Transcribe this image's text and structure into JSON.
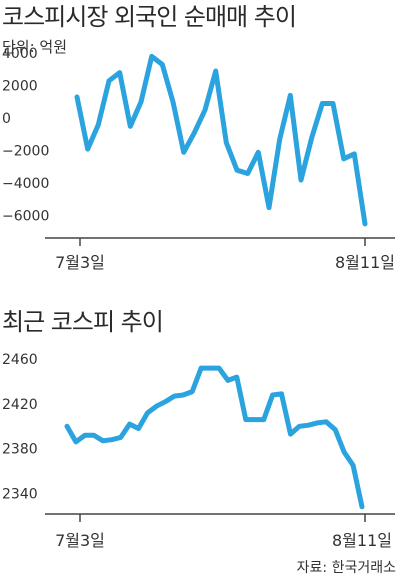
{
  "chart_data": [
    {
      "type": "line",
      "title": "코스피시장 외국인 순매매 추이",
      "subtitle": "단위: 억원",
      "yticks": [
        "4000",
        "2000",
        "0",
        "−2000",
        "−4000",
        "−6000"
      ],
      "ytick_values": [
        4000,
        2000,
        0,
        -2000,
        -4000,
        -6000
      ],
      "ylim": [
        -7000,
        4500
      ],
      "xlabels": [
        "7월3일",
        "8월11일"
      ],
      "color": "#2aa3de",
      "values": [
        1300,
        -1900,
        -400,
        2300,
        2800,
        -500,
        1000,
        3800,
        3300,
        1000,
        -2100,
        -900,
        500,
        2900,
        -1500,
        -3200,
        -3400,
        -2100,
        -5500,
        -1300,
        1400,
        -3800,
        -1200,
        900,
        900,
        -2500,
        -2200,
        -6500
      ]
    },
    {
      "type": "line",
      "title": "최근 코스피 추이",
      "yticks": [
        "2460",
        "2420",
        "2380",
        "2340"
      ],
      "ytick_values": [
        2460,
        2420,
        2380,
        2340
      ],
      "ylim": [
        2318,
        2470
      ],
      "xlabels": [
        "7월3일",
        "8월11일"
      ],
      "color": "#2aa3de",
      "values": [
        2400,
        2386,
        2392,
        2392,
        2387,
        2388,
        2390,
        2402,
        2398,
        2412,
        2418,
        2422,
        2427,
        2428,
        2431,
        2452,
        2452,
        2452,
        2441,
        2444,
        2406,
        2406,
        2406,
        2428,
        2429,
        2393,
        2400,
        2401,
        2403,
        2404,
        2397,
        2377,
        2365,
        2328
      ]
    }
  ],
  "source": "자료: 한국거래소"
}
